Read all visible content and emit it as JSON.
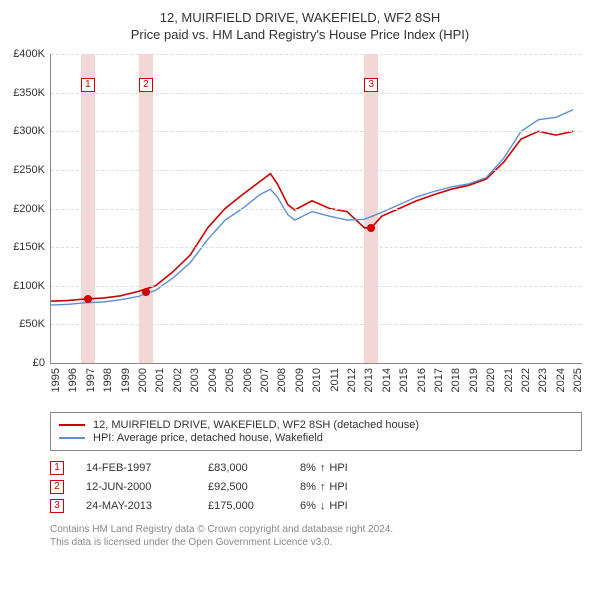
{
  "title": {
    "line1": "12, MUIRFIELD DRIVE, WAKEFIELD, WF2 8SH",
    "line2": "Price paid vs. HM Land Registry's House Price Index (HPI)",
    "fontsize": 13,
    "color": "#333333"
  },
  "chart": {
    "type": "line",
    "background_color": "#ffffff",
    "grid_color": "#dddddd",
    "axis_color": "#888888",
    "x_range": [
      1995,
      2025.5
    ],
    "y_range": [
      0,
      400000
    ],
    "y_ticks": [
      0,
      50000,
      100000,
      150000,
      200000,
      250000,
      300000,
      350000,
      400000
    ],
    "y_tick_labels": [
      "£0",
      "£50K",
      "£100K",
      "£150K",
      "£200K",
      "£250K",
      "£300K",
      "£350K",
      "£400K"
    ],
    "x_ticks": [
      1995,
      1996,
      1997,
      1998,
      1999,
      2000,
      2001,
      2002,
      2003,
      2004,
      2005,
      2006,
      2007,
      2008,
      2009,
      2010,
      2011,
      2012,
      2013,
      2014,
      2015,
      2016,
      2017,
      2018,
      2019,
      2020,
      2021,
      2022,
      2023,
      2024,
      2025
    ],
    "x_tick_rotation_deg": -90,
    "label_fontsize": 11,
    "series": [
      {
        "id": "property",
        "label": "12, MUIRFIELD DRIVE, WAKEFIELD, WF2 8SH (detached house)",
        "color": "#cc0000",
        "line_width": 1.6,
        "points": [
          [
            1995,
            80000
          ],
          [
            1996,
            81000
          ],
          [
            1997,
            83000
          ],
          [
            1998,
            84000
          ],
          [
            1999,
            87000
          ],
          [
            2000,
            92500
          ],
          [
            2001,
            100000
          ],
          [
            2002,
            118000
          ],
          [
            2003,
            140000
          ],
          [
            2004,
            175000
          ],
          [
            2005,
            200000
          ],
          [
            2006,
            218000
          ],
          [
            2007,
            235000
          ],
          [
            2007.6,
            245000
          ],
          [
            2008,
            232000
          ],
          [
            2008.6,
            205000
          ],
          [
            2009,
            198000
          ],
          [
            2010,
            210000
          ],
          [
            2011,
            200000
          ],
          [
            2012,
            196000
          ],
          [
            2013,
            175000
          ],
          [
            2013.4,
            175000
          ],
          [
            2014,
            190000
          ],
          [
            2015,
            200000
          ],
          [
            2016,
            210000
          ],
          [
            2017,
            218000
          ],
          [
            2018,
            225000
          ],
          [
            2019,
            230000
          ],
          [
            2020,
            238000
          ],
          [
            2021,
            260000
          ],
          [
            2022,
            290000
          ],
          [
            2023,
            300000
          ],
          [
            2024,
            295000
          ],
          [
            2025,
            300000
          ]
        ]
      },
      {
        "id": "hpi",
        "label": "HPI: Average price, detached house, Wakefield",
        "color": "#5b8fd6",
        "line_width": 1.4,
        "points": [
          [
            1995,
            75000
          ],
          [
            1996,
            76000
          ],
          [
            1997,
            78000
          ],
          [
            1998,
            79000
          ],
          [
            1999,
            82000
          ],
          [
            2000,
            86000
          ],
          [
            2001,
            94000
          ],
          [
            2002,
            110000
          ],
          [
            2003,
            130000
          ],
          [
            2004,
            160000
          ],
          [
            2005,
            185000
          ],
          [
            2006,
            200000
          ],
          [
            2007,
            218000
          ],
          [
            2007.6,
            225000
          ],
          [
            2008,
            215000
          ],
          [
            2008.6,
            192000
          ],
          [
            2009,
            185000
          ],
          [
            2010,
            196000
          ],
          [
            2011,
            190000
          ],
          [
            2012,
            185000
          ],
          [
            2013,
            186000
          ],
          [
            2014,
            195000
          ],
          [
            2015,
            205000
          ],
          [
            2016,
            215000
          ],
          [
            2017,
            222000
          ],
          [
            2018,
            228000
          ],
          [
            2019,
            232000
          ],
          [
            2020,
            240000
          ],
          [
            2021,
            265000
          ],
          [
            2022,
            300000
          ],
          [
            2023,
            315000
          ],
          [
            2024,
            318000
          ],
          [
            2025,
            328000
          ]
        ]
      }
    ],
    "sale_markers": [
      {
        "n": "1",
        "x": 1997.12,
        "y": 83000,
        "color": "#cc0000",
        "band_color": "#f3d6d6"
      },
      {
        "n": "2",
        "x": 2000.45,
        "y": 92500,
        "color": "#cc0000",
        "band_color": "#f3d6d6"
      },
      {
        "n": "3",
        "x": 2013.4,
        "y": 175000,
        "color": "#cc0000",
        "band_color": "#f3d6d6"
      }
    ]
  },
  "legend": {
    "border_color": "#888888",
    "fontsize": 11,
    "items": [
      {
        "color": "#cc0000",
        "label": "12, MUIRFIELD DRIVE, WAKEFIELD, WF2 8SH (detached house)"
      },
      {
        "color": "#5b8fd6",
        "label": "HPI: Average price, detached house, Wakefield"
      }
    ]
  },
  "sales": [
    {
      "n": "1",
      "badge_color": "#cc0000",
      "date": "14-FEB-1997",
      "price": "£83,000",
      "diff_pct": "8%",
      "diff_dir": "up",
      "diff_suffix": "HPI"
    },
    {
      "n": "2",
      "badge_color": "#cc0000",
      "date": "12-JUN-2000",
      "price": "£92,500",
      "diff_pct": "8%",
      "diff_dir": "up",
      "diff_suffix": "HPI"
    },
    {
      "n": "3",
      "badge_color": "#cc0000",
      "date": "24-MAY-2013",
      "price": "£175,000",
      "diff_pct": "6%",
      "diff_dir": "down",
      "diff_suffix": "HPI"
    }
  ],
  "attribution": {
    "line1": "Contains HM Land Registry data © Crown copyright and database right 2024.",
    "line2": "This data is licensed under the Open Government Licence v3.0.",
    "color": "#888888",
    "fontsize": 10
  },
  "arrows": {
    "up": "↑",
    "down": "↓"
  }
}
